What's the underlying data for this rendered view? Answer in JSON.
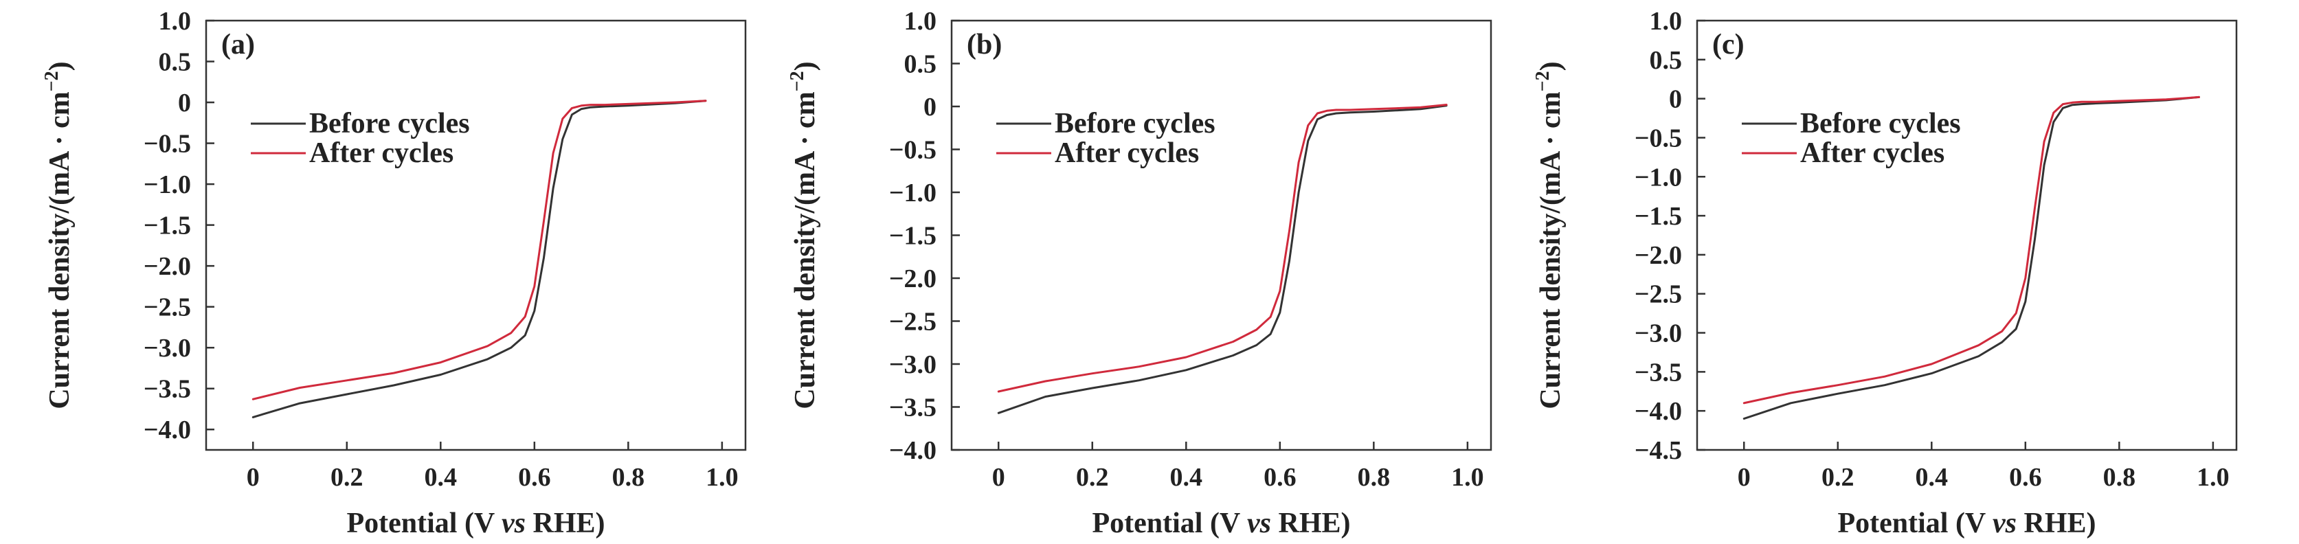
{
  "chart_data": [
    {
      "type": "line",
      "panel_label": "(a)",
      "xlabel_parts": [
        "Potential (V ",
        "vs",
        " RHE)"
      ],
      "ylabel_parts": [
        "Current density/(mA · cm",
        "−2",
        ")"
      ],
      "xlim": [
        -0.1,
        1.05
      ],
      "ylim": [
        -4.25,
        1.0
      ],
      "xticks": [
        0,
        0.2,
        0.4,
        0.6,
        0.8,
        1.0
      ],
      "xtick_labels": [
        "0",
        "0.2",
        "0.4",
        "0.6",
        "0.8",
        "1.0"
      ],
      "yticks": [
        1.0,
        0.5,
        0,
        -0.5,
        -1.0,
        -1.5,
        -2.0,
        -2.5,
        -3.0,
        -3.5,
        -4.0
      ],
      "ytick_labels": [
        "1.0",
        "0.5",
        "0",
        "−0.5",
        "−1.0",
        "−1.5",
        "−2.0",
        "−2.5",
        "−3.0",
        "−3.5",
        "−4.0"
      ],
      "legend_position": "upper-left",
      "series": [
        {
          "name": "Before cycles",
          "color": "#333333",
          "x": [
            0,
            0.1,
            0.2,
            0.3,
            0.4,
            0.5,
            0.55,
            0.58,
            0.6,
            0.62,
            0.64,
            0.66,
            0.68,
            0.7,
            0.72,
            0.75,
            0.8,
            0.9,
            0.965
          ],
          "y": [
            -3.85,
            -3.68,
            -3.57,
            -3.46,
            -3.33,
            -3.14,
            -3.0,
            -2.85,
            -2.55,
            -1.9,
            -1.05,
            -0.45,
            -0.15,
            -0.08,
            -0.06,
            -0.05,
            -0.04,
            -0.01,
            0.02
          ]
        },
        {
          "name": "After cycles",
          "color": "#d02a3c",
          "x": [
            0,
            0.1,
            0.2,
            0.3,
            0.4,
            0.5,
            0.55,
            0.58,
            0.6,
            0.62,
            0.64,
            0.66,
            0.68,
            0.7,
            0.72,
            0.75,
            0.8,
            0.9,
            0.965
          ],
          "y": [
            -3.63,
            -3.49,
            -3.4,
            -3.31,
            -3.18,
            -2.98,
            -2.82,
            -2.62,
            -2.25,
            -1.45,
            -0.62,
            -0.2,
            -0.07,
            -0.04,
            -0.03,
            -0.03,
            -0.02,
            0.0,
            0.02
          ]
        }
      ]
    },
    {
      "type": "line",
      "panel_label": "(b)",
      "xlabel_parts": [
        "Potential (V ",
        "vs",
        " RHE)"
      ],
      "ylabel_parts": [
        "Current density/(mA · cm",
        "−2",
        ")"
      ],
      "xlim": [
        -0.1,
        1.05
      ],
      "ylim": [
        -4.0,
        1.0
      ],
      "xticks": [
        0,
        0.2,
        0.4,
        0.6,
        0.8,
        1.0
      ],
      "xtick_labels": [
        "0",
        "0.2",
        "0.4",
        "0.6",
        "0.8",
        "1.0"
      ],
      "yticks": [
        1.0,
        0.5,
        0,
        -0.5,
        -1.0,
        -1.5,
        -2.0,
        -2.5,
        -3.0,
        -3.5,
        -4.0
      ],
      "ytick_labels": [
        "1.0",
        "0.5",
        "0",
        "−0.5",
        "−1.0",
        "−1.5",
        "−2.0",
        "−2.5",
        "−3.0",
        "−3.5",
        "−4.0"
      ],
      "legend_position": "upper-left",
      "series": [
        {
          "name": "Before cycles",
          "color": "#333333",
          "x": [
            0,
            0.1,
            0.2,
            0.3,
            0.4,
            0.5,
            0.55,
            0.58,
            0.6,
            0.62,
            0.64,
            0.66,
            0.68,
            0.7,
            0.72,
            0.75,
            0.8,
            0.9,
            0.955
          ],
          "y": [
            -3.57,
            -3.38,
            -3.28,
            -3.19,
            -3.07,
            -2.9,
            -2.78,
            -2.65,
            -2.4,
            -1.8,
            -1.0,
            -0.4,
            -0.15,
            -0.1,
            -0.08,
            -0.07,
            -0.06,
            -0.03,
            0.01
          ]
        },
        {
          "name": "After cycles",
          "color": "#d02a3c",
          "x": [
            0,
            0.1,
            0.2,
            0.3,
            0.4,
            0.5,
            0.55,
            0.58,
            0.6,
            0.62,
            0.64,
            0.66,
            0.68,
            0.7,
            0.72,
            0.75,
            0.8,
            0.9,
            0.955
          ],
          "y": [
            -3.32,
            -3.2,
            -3.11,
            -3.03,
            -2.92,
            -2.74,
            -2.6,
            -2.45,
            -2.15,
            -1.45,
            -0.65,
            -0.22,
            -0.08,
            -0.05,
            -0.04,
            -0.04,
            -0.03,
            -0.01,
            0.02
          ]
        }
      ]
    },
    {
      "type": "line",
      "panel_label": "(c)",
      "xlabel_parts": [
        "Potential (V ",
        "vs",
        " RHE)"
      ],
      "ylabel_parts": [
        "Current density/(mA · cm",
        "−2",
        ")"
      ],
      "xlim": [
        -0.1,
        1.05
      ],
      "ylim": [
        -4.5,
        1.0
      ],
      "xticks": [
        0,
        0.2,
        0.4,
        0.6,
        0.8,
        1.0
      ],
      "xtick_labels": [
        "0",
        "0.2",
        "0.4",
        "0.6",
        "0.8",
        "1.0"
      ],
      "yticks": [
        1.0,
        0.5,
        0,
        -0.5,
        -1.0,
        -1.5,
        -2.0,
        -2.5,
        -3.0,
        -3.5,
        -4.0,
        -4.5
      ],
      "ytick_labels": [
        "1.0",
        "0.5",
        "0",
        "−0.5",
        "−1.0",
        "−1.5",
        "−2.0",
        "−2.5",
        "−3.0",
        "−3.5",
        "−4.0",
        "−4.5"
      ],
      "legend_position": "upper-left",
      "series": [
        {
          "name": "Before cycles",
          "color": "#333333",
          "x": [
            0,
            0.1,
            0.2,
            0.3,
            0.4,
            0.5,
            0.55,
            0.58,
            0.6,
            0.62,
            0.64,
            0.66,
            0.68,
            0.7,
            0.72,
            0.75,
            0.8,
            0.9,
            0.97
          ],
          "y": [
            -4.1,
            -3.9,
            -3.78,
            -3.67,
            -3.52,
            -3.3,
            -3.12,
            -2.95,
            -2.6,
            -1.8,
            -0.85,
            -0.3,
            -0.12,
            -0.08,
            -0.07,
            -0.06,
            -0.05,
            -0.02,
            0.02
          ]
        },
        {
          "name": "After cycles",
          "color": "#d02a3c",
          "x": [
            0,
            0.1,
            0.2,
            0.3,
            0.4,
            0.5,
            0.55,
            0.58,
            0.6,
            0.62,
            0.64,
            0.66,
            0.68,
            0.7,
            0.72,
            0.75,
            0.8,
            0.9,
            0.97
          ],
          "y": [
            -3.9,
            -3.77,
            -3.67,
            -3.56,
            -3.4,
            -3.16,
            -2.98,
            -2.75,
            -2.3,
            -1.4,
            -0.55,
            -0.18,
            -0.07,
            -0.05,
            -0.04,
            -0.04,
            -0.03,
            -0.01,
            0.02
          ]
        }
      ]
    }
  ]
}
